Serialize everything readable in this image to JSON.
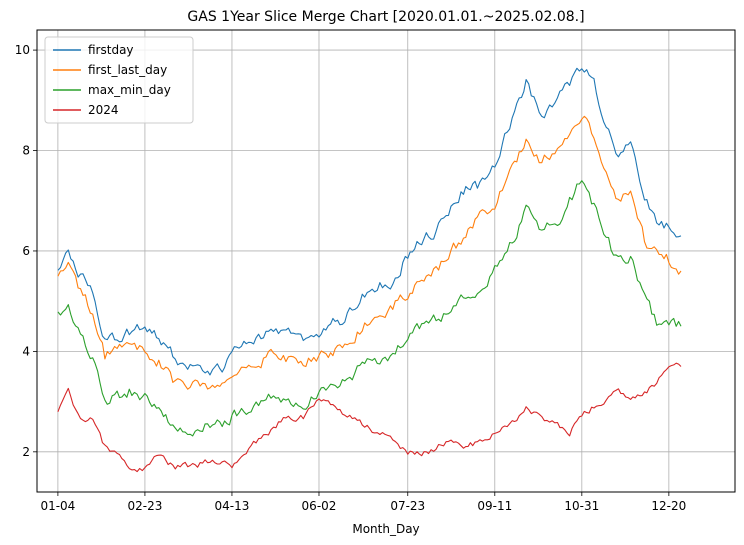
{
  "chart_data": {
    "type": "line",
    "title": "GAS 1Year Slice Merge Chart [2020.01.01.~2025.02.08.]",
    "xlabel": "Month_Day",
    "ylabel": "",
    "x_ticks": [
      "01-04",
      "02-23",
      "04-13",
      "06-02",
      "07-23",
      "09-11",
      "10-31",
      "12-20"
    ],
    "y_ticks": [
      "2",
      "4",
      "6",
      "8",
      "10"
    ],
    "xlim": [
      "12-23",
      "01-27"
    ],
    "ylim": [
      1.2,
      10.4
    ],
    "grid": true,
    "legend_position": "upper-left",
    "anchors": [
      "01-04",
      "01-10",
      "01-17",
      "01-24",
      "01-31",
      "02-07",
      "02-14",
      "02-23",
      "03-02",
      "03-10",
      "03-20",
      "03-30",
      "04-06",
      "04-13",
      "04-24",
      "05-04",
      "05-14",
      "05-24",
      "06-02",
      "06-14",
      "06-24",
      "07-04",
      "07-13",
      "07-23",
      "08-04",
      "08-14",
      "08-24",
      "09-01",
      "09-11",
      "09-21",
      "09-29",
      "10-08",
      "10-17",
      "10-24",
      "10-31",
      "11-07",
      "11-14",
      "11-21",
      "11-28",
      "12-06",
      "12-13",
      "12-20",
      "12-27"
    ],
    "series": [
      {
        "name": "firstday",
        "color": "#1f77b4",
        "values": [
          5.6,
          6.0,
          5.5,
          5.1,
          4.2,
          4.3,
          4.4,
          4.5,
          4.3,
          3.9,
          3.7,
          3.6,
          3.6,
          3.9,
          4.2,
          4.4,
          4.3,
          4.2,
          4.4,
          4.6,
          5.0,
          5.3,
          5.4,
          5.9,
          6.3,
          6.6,
          7.2,
          7.3,
          7.8,
          8.6,
          9.4,
          8.7,
          9.0,
          9.3,
          9.7,
          9.3,
          8.5,
          8.0,
          8.2,
          7.0,
          6.6,
          6.5,
          6.3
        ]
      },
      {
        "name": "first_last_day",
        "color": "#ff7f0e",
        "values": [
          5.4,
          5.7,
          5.2,
          4.8,
          3.9,
          4.0,
          4.1,
          4.0,
          3.8,
          3.4,
          3.3,
          3.3,
          3.2,
          3.6,
          3.8,
          3.9,
          3.8,
          3.8,
          3.9,
          4.1,
          4.4,
          4.7,
          4.8,
          5.2,
          5.6,
          5.8,
          6.3,
          6.6,
          6.9,
          7.6,
          8.3,
          7.8,
          8.1,
          8.4,
          8.8,
          8.3,
          7.6,
          7.0,
          7.2,
          6.2,
          5.9,
          5.8,
          5.6
        ]
      },
      {
        "name": "max_min_day",
        "color": "#2ca02c",
        "values": [
          4.8,
          4.9,
          4.5,
          3.9,
          3.0,
          3.1,
          3.2,
          3.1,
          2.9,
          2.5,
          2.5,
          2.5,
          2.5,
          2.7,
          2.9,
          3.1,
          3.1,
          3.0,
          3.1,
          3.3,
          3.6,
          3.8,
          3.9,
          4.3,
          4.6,
          4.7,
          5.1,
          5.3,
          5.6,
          6.2,
          6.8,
          6.4,
          6.6,
          7.0,
          7.4,
          6.9,
          6.2,
          5.8,
          5.9,
          5.0,
          4.6,
          4.6,
          4.5
        ]
      },
      {
        "name": "2024",
        "color": "#d62728",
        "values": [
          2.85,
          3.3,
          2.6,
          2.7,
          2.1,
          2.0,
          1.7,
          1.65,
          1.9,
          1.7,
          1.7,
          1.8,
          1.8,
          1.75,
          2.1,
          2.4,
          2.7,
          2.7,
          3.1,
          2.8,
          2.6,
          2.4,
          2.3,
          2.0,
          2.0,
          2.2,
          2.05,
          2.2,
          2.35,
          2.6,
          2.9,
          2.7,
          2.5,
          2.4,
          2.7,
          2.9,
          3.0,
          3.2,
          3.1,
          3.2,
          3.4,
          3.7,
          3.7
        ]
      }
    ]
  }
}
